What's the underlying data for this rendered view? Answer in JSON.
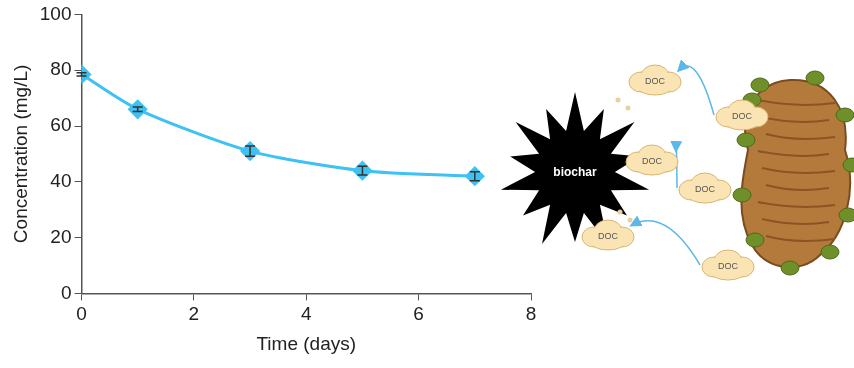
{
  "chart_data": {
    "type": "line",
    "x": [
      0,
      1,
      3,
      5,
      7
    ],
    "values": [
      78.5,
      66,
      51,
      44,
      42
    ],
    "errors": [
      0.6,
      0.8,
      1.8,
      1.6,
      1.6
    ],
    "color": "#3ec1f3",
    "marker": "diamond",
    "x_label": "Time (days)",
    "y_label": "Concentration (mg/L)",
    "xlim": [
      0,
      8
    ],
    "xticks": [
      0,
      2,
      4,
      6,
      8
    ],
    "ylim": [
      0,
      100
    ],
    "yticks": [
      0,
      20,
      40,
      60,
      80,
      100
    ],
    "grid": false
  },
  "illustration": {
    "center_label": "biochar",
    "particle_labels": [
      "DOC",
      "DOC",
      "DOC",
      "DOC",
      "DOC",
      "DOC"
    ]
  }
}
